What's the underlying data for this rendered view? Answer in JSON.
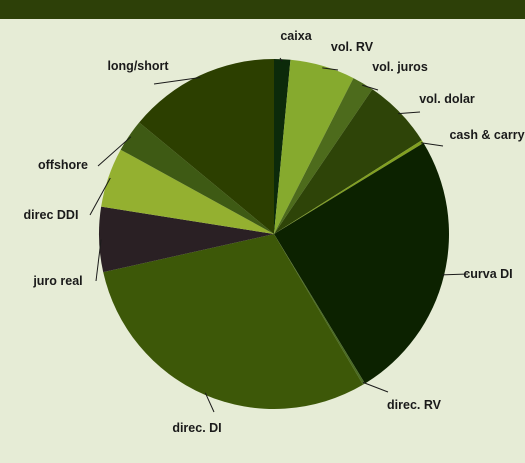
{
  "chart_data": {
    "type": "pie",
    "title": "",
    "slices": [
      {
        "label": "caixa",
        "value": 1.5,
        "color": "#0c2a0a"
      },
      {
        "label": "vol. RV",
        "value": 6.0,
        "color": "#86aa2e"
      },
      {
        "label": "vol. juros",
        "value": 2.0,
        "color": "#4d6b1c"
      },
      {
        "label": "vol. dolar",
        "value": 6.5,
        "color": "#2e4408"
      },
      {
        "label": "cash & carry",
        "value": 0.3,
        "color": "#82a020"
      },
      {
        "label": "curva DI",
        "value": 25.0,
        "color": "#0c2200"
      },
      {
        "label": "direc. RV",
        "value": 0.2,
        "color": "#4a6a24"
      },
      {
        "label": "direc. DI",
        "value": 30.0,
        "color": "#3d5808"
      },
      {
        "label": "juro real",
        "value": 6.0,
        "color": "#2a2024"
      },
      {
        "label": "direc DDI",
        "value": 5.5,
        "color": "#94b030"
      },
      {
        "label": "offshore",
        "value": 3.0,
        "color": "#3e5a14"
      },
      {
        "label": "long/short",
        "value": 14.0,
        "color": "#2c3f00"
      }
    ]
  }
}
